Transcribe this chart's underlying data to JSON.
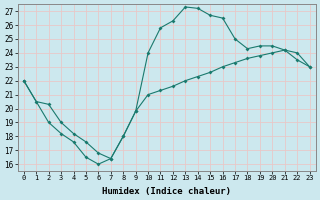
{
  "xlabel": "Humidex (Indice chaleur)",
  "background_color": "#cce8ee",
  "grid_color": "#ddeebb",
  "line_color": "#1a7a6e",
  "ylim": [
    15.5,
    27.5
  ],
  "xlim": [
    -0.5,
    23.5
  ],
  "yticks": [
    16,
    17,
    18,
    19,
    20,
    21,
    22,
    23,
    24,
    25,
    26,
    27
  ],
  "xticks": [
    0,
    1,
    2,
    3,
    4,
    5,
    6,
    7,
    8,
    9,
    10,
    11,
    12,
    13,
    14,
    15,
    16,
    17,
    18,
    19,
    20,
    21,
    22,
    23
  ],
  "line1_x": [
    0,
    1,
    2,
    3,
    4,
    5,
    6,
    7,
    8,
    9,
    10,
    11,
    12,
    13,
    14,
    15,
    16,
    17,
    18,
    19,
    20,
    21,
    22,
    23
  ],
  "line1_y": [
    22.0,
    20.5,
    20.3,
    19.0,
    18.2,
    17.6,
    16.8,
    16.4,
    18.0,
    19.8,
    21.0,
    21.3,
    21.6,
    22.0,
    22.3,
    22.6,
    23.0,
    23.3,
    23.6,
    23.8,
    24.0,
    24.2,
    24.0,
    23.0
  ],
  "line2_x": [
    0,
    2,
    3,
    4,
    5,
    6,
    7,
    8,
    9,
    10,
    11,
    12,
    13,
    14,
    15,
    16,
    17,
    18,
    19,
    20,
    21,
    22,
    23
  ],
  "line2_y": [
    22.0,
    19.0,
    18.2,
    17.6,
    16.5,
    16.0,
    16.4,
    18.0,
    19.8,
    24.0,
    25.8,
    26.3,
    27.3,
    27.2,
    26.7,
    26.5,
    25.0,
    24.3,
    24.5,
    24.5,
    24.2,
    23.5,
    23.0
  ]
}
